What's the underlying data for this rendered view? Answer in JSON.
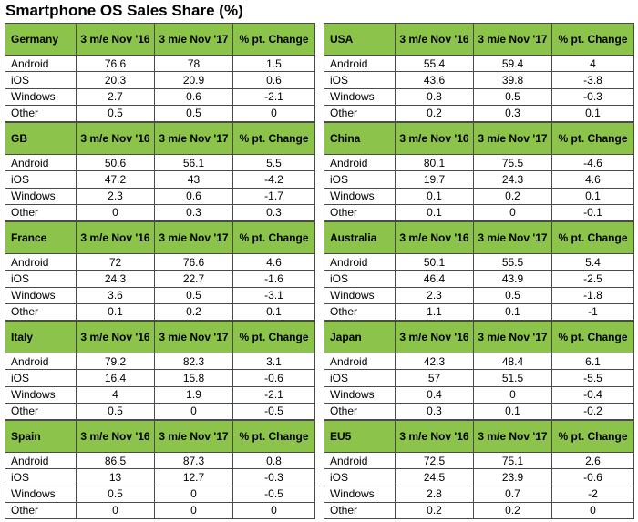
{
  "title": "Smartphone OS Sales Share (%)",
  "headers": {
    "col1_two_line": "3 m/e Nov '16",
    "col2": "3 m/e Nov '17",
    "col3": "% pt. Change"
  },
  "left": [
    {
      "country": "Germany",
      "rows": [
        {
          "os": "Android",
          "v16": "76.6",
          "v17": "78",
          "chg": "1.5"
        },
        {
          "os": "iOS",
          "v16": "20.3",
          "v17": "20.9",
          "chg": "0.6"
        },
        {
          "os": "Windows",
          "v16": "2.7",
          "v17": "0.6",
          "chg": "-2.1"
        },
        {
          "os": "Other",
          "v16": "0.5",
          "v17": "0.5",
          "chg": "0"
        }
      ]
    },
    {
      "country": "GB",
      "rows": [
        {
          "os": "Android",
          "v16": "50.6",
          "v17": "56.1",
          "chg": "5.5"
        },
        {
          "os": "iOS",
          "v16": "47.2",
          "v17": "43",
          "chg": "-4.2"
        },
        {
          "os": "Windows",
          "v16": "2.3",
          "v17": "0.6",
          "chg": "-1.7"
        },
        {
          "os": "Other",
          "v16": "0",
          "v17": "0.3",
          "chg": "0.3"
        }
      ]
    },
    {
      "country": "France",
      "rows": [
        {
          "os": "Android",
          "v16": "72",
          "v17": "76.6",
          "chg": "4.6"
        },
        {
          "os": "iOS",
          "v16": "24.3",
          "v17": "22.7",
          "chg": "-1.6"
        },
        {
          "os": "Windows",
          "v16": "3.6",
          "v17": "0.5",
          "chg": "-3.1"
        },
        {
          "os": "Other",
          "v16": "0.1",
          "v17": "0.2",
          "chg": "0.1"
        }
      ]
    },
    {
      "country": "Italy",
      "rows": [
        {
          "os": "Android",
          "v16": "79.2",
          "v17": "82.3",
          "chg": "3.1"
        },
        {
          "os": "iOS",
          "v16": "16.4",
          "v17": "15.8",
          "chg": "-0.6"
        },
        {
          "os": "Windows",
          "v16": "4",
          "v17": "1.9",
          "chg": "-2.1"
        },
        {
          "os": "Other",
          "v16": "0.5",
          "v17": "0",
          "chg": "-0.5"
        }
      ]
    },
    {
      "country": "Spain",
      "rows": [
        {
          "os": "Android",
          "v16": "86.5",
          "v17": "87.3",
          "chg": "0.8"
        },
        {
          "os": "iOS",
          "v16": "13",
          "v17": "12.7",
          "chg": "-0.3"
        },
        {
          "os": "Windows",
          "v16": "0.5",
          "v17": "0",
          "chg": "-0.5"
        },
        {
          "os": "Other",
          "v16": "0",
          "v17": "0",
          "chg": "0"
        }
      ]
    }
  ],
  "right": [
    {
      "country": "USA",
      "rows": [
        {
          "os": "Android",
          "v16": "55.4",
          "v17": "59.4",
          "chg": "4"
        },
        {
          "os": "iOS",
          "v16": "43.6",
          "v17": "39.8",
          "chg": "-3.8"
        },
        {
          "os": "Windows",
          "v16": "0.8",
          "v17": "0.5",
          "chg": "-0.3"
        },
        {
          "os": "Other",
          "v16": "0.2",
          "v17": "0.3",
          "chg": "0.1"
        }
      ]
    },
    {
      "country": "China",
      "rows": [
        {
          "os": "Android",
          "v16": "80.1",
          "v17": "75.5",
          "chg": "-4.6"
        },
        {
          "os": "iOS",
          "v16": "19.7",
          "v17": "24.3",
          "chg": "4.6"
        },
        {
          "os": "Windows",
          "v16": "0.1",
          "v17": "0.2",
          "chg": "0.1"
        },
        {
          "os": "Other",
          "v16": "0.1",
          "v17": "0",
          "chg": "-0.1"
        }
      ]
    },
    {
      "country": "Australia",
      "rows": [
        {
          "os": "Android",
          "v16": "50.1",
          "v17": "55.5",
          "chg": "5.4"
        },
        {
          "os": "iOS",
          "v16": "46.4",
          "v17": "43.9",
          "chg": "-2.5"
        },
        {
          "os": "Windows",
          "v16": "2.3",
          "v17": "0.5",
          "chg": "-1.8"
        },
        {
          "os": "Other",
          "v16": "1.1",
          "v17": "0.1",
          "chg": "-1"
        }
      ]
    },
    {
      "country": "Japan",
      "rows": [
        {
          "os": "Android",
          "v16": "42.3",
          "v17": "48.4",
          "chg": "6.1"
        },
        {
          "os": "iOS",
          "v16": "57",
          "v17": "51.5",
          "chg": "-5.5"
        },
        {
          "os": "Windows",
          "v16": "0.4",
          "v17": "0",
          "chg": "-0.4"
        },
        {
          "os": "Other",
          "v16": "0.3",
          "v17": "0.1",
          "chg": "-0.2"
        }
      ]
    },
    {
      "country": "EU5",
      "rows": [
        {
          "os": "Android",
          "v16": "72.5",
          "v17": "75.1",
          "chg": "2.6"
        },
        {
          "os": "iOS",
          "v16": "24.5",
          "v17": "23.9",
          "chg": "-0.6"
        },
        {
          "os": "Windows",
          "v16": "2.8",
          "v17": "0.7",
          "chg": "-2"
        },
        {
          "os": "Other",
          "v16": "0.2",
          "v17": "0.2",
          "chg": "0"
        }
      ]
    }
  ],
  "colors": {
    "header_green": "#8cc34a",
    "border": "#4a4a4a"
  }
}
